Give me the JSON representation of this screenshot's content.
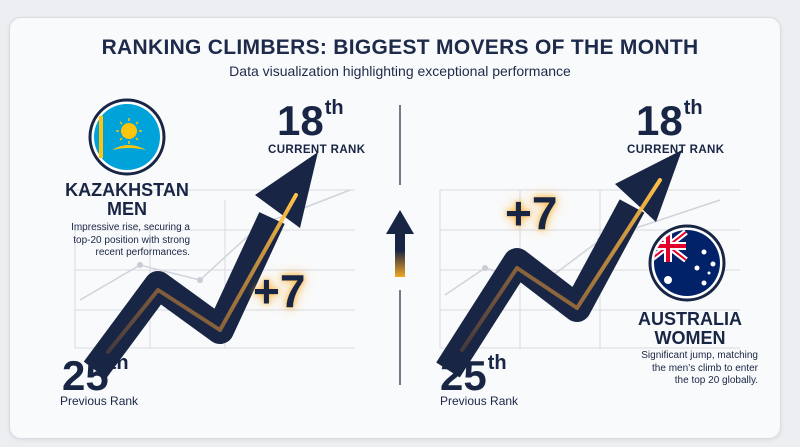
{
  "header": {
    "title": "RANKING CLIMBERS: BIGGEST MOVERS OF THE MONTH",
    "subtitle": "Data visualization highlighting exceptional performance"
  },
  "panels": [
    {
      "team": "KAZAKHSTAN",
      "team_line2": "MEN",
      "description_lines": [
        "Impressive rise, securing a",
        "top-20 position with strong",
        "recent performances."
      ],
      "current_rank": "18",
      "current_suffix": "th",
      "current_label": "CURRENT RANK",
      "previous_rank": "25",
      "previous_suffix": "th",
      "previous_label": "Previous Rank",
      "delta": "+7",
      "flag_icon": "kazakhstan-flag-icon"
    },
    {
      "team": "AUSTRALIA",
      "team_line2": "WOMEN",
      "description_lines": [
        "Significant jump, matching",
        "the men’s climb to enter",
        "the top 20 globally."
      ],
      "current_rank": "18",
      "current_suffix": "th",
      "current_label": "CURRENT RANK",
      "previous_rank": "25",
      "previous_suffix": "th",
      "previous_label": "Previous Rank",
      "delta": "+7",
      "flag_icon": "australia-flag-icon"
    }
  ],
  "colors": {
    "navy": "#182544",
    "glow": "#f5a623",
    "kazakhstan_blue": "#00a3d9",
    "kazakhstan_gold": "#fec50c",
    "australia_blue": "#012169",
    "australia_red": "#e4002b"
  }
}
